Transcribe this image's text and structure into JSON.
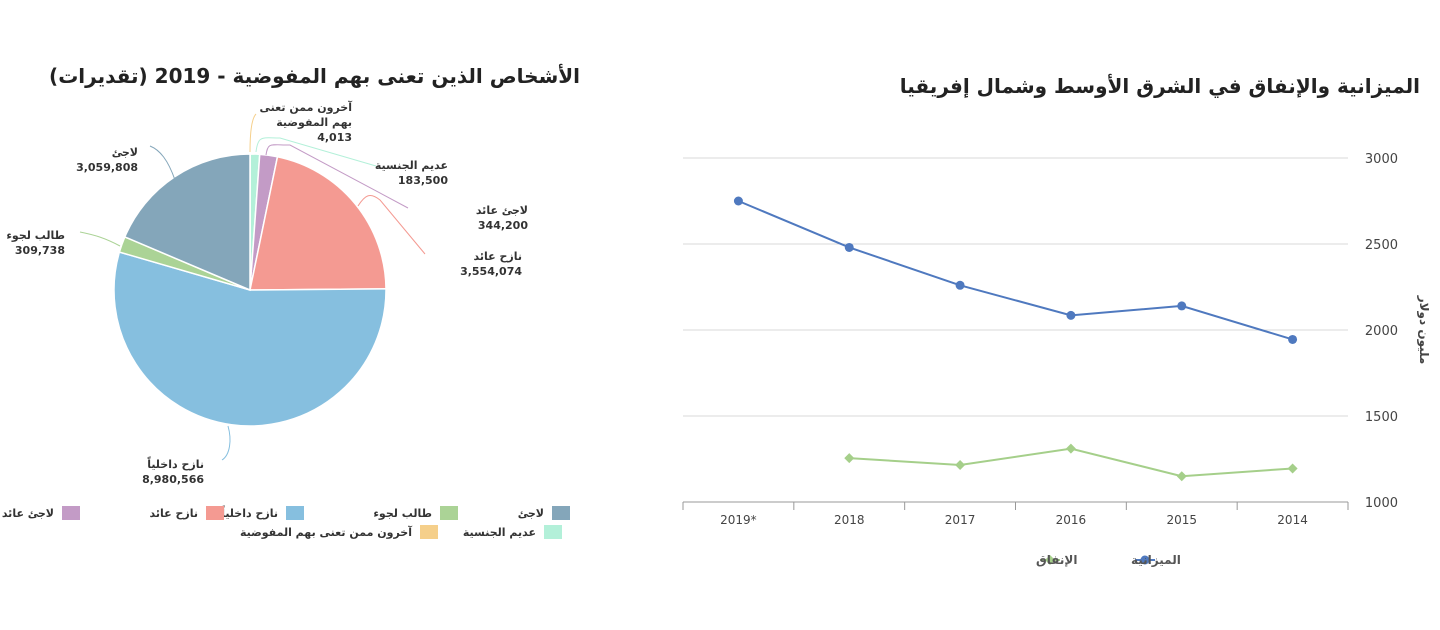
{
  "chart_data": [
    {
      "type": "pie",
      "title": "الأشخاص الذين تعنى بهم المفوضية - 2019 (تقديرات)",
      "slices": [
        {
          "label": "آخرون ممن تعنى بهم المفوضية",
          "value": 4013,
          "value_text": "4,013",
          "color": "#f5cf8a"
        },
        {
          "label": "عديم الجنسية",
          "value": 183500,
          "value_text": "183,500",
          "color": "#b3f0d9"
        },
        {
          "label": "لاجئ عائد",
          "value": 344200,
          "value_text": "344,200",
          "color": "#c39bc6"
        },
        {
          "label": "نازح عائد",
          "value": 3554074,
          "value_text": "3,554,074",
          "color": "#f49a92"
        },
        {
          "label": "نازح داخلياً",
          "value": 8980566,
          "value_text": "8,980,566",
          "color": "#86bfdf"
        },
        {
          "label": "طالب لجوء",
          "value": 309738,
          "value_text": "309,738",
          "color": "#abd396"
        },
        {
          "label": "لاجئ",
          "value": 3059808,
          "value_text": "3,059,808",
          "color": "#84a6ba"
        }
      ],
      "legend": [
        "لاجئ",
        "طالب لجوء",
        "نازح داخلياً",
        "نازح عائد",
        "لاجئ عائد",
        "عديم الجنسية",
        "آخرون ممن تعنى بهم المفوضية"
      ],
      "label_others_line1": "آخرون ممن تعنى",
      "label_others_line2": "بهم المفوضية"
    },
    {
      "type": "line",
      "title": "الميزانية والإنفاق في الشرق الأوسط وشمال إفريقيا",
      "categories": [
        "2019*",
        "2018",
        "2017",
        "2016",
        "2015",
        "2014"
      ],
      "ylabel": "مليون دولار",
      "ylim": [
        1000,
        3000
      ],
      "yticks": [
        "1000",
        "1500",
        "2000",
        "2500",
        "3000"
      ],
      "grid": true,
      "series": [
        {
          "name": "الميزانية",
          "color": "#4f79bf",
          "marker": "circle",
          "values": [
            2750,
            2480,
            2260,
            2085,
            2140,
            1945
          ]
        },
        {
          "name": "الإنفاق",
          "color": "#a5cf8a",
          "marker": "diamond",
          "values": [
            null,
            1255,
            1215,
            1310,
            1150,
            1195
          ]
        }
      ],
      "legend_placement": "bottom"
    }
  ]
}
